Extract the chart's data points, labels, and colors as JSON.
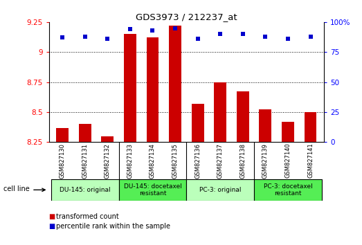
{
  "title": "GDS3973 / 212237_at",
  "samples": [
    "GSM827130",
    "GSM827131",
    "GSM827132",
    "GSM827133",
    "GSM827134",
    "GSM827135",
    "GSM827136",
    "GSM827137",
    "GSM827138",
    "GSM827139",
    "GSM827140",
    "GSM827141"
  ],
  "bar_values": [
    8.37,
    8.4,
    8.3,
    9.15,
    9.12,
    9.22,
    8.57,
    8.75,
    8.67,
    8.52,
    8.42,
    8.5
  ],
  "percentile_values": [
    87,
    88,
    86,
    94,
    93,
    95,
    86,
    90,
    90,
    88,
    86,
    88
  ],
  "ylim_left": [
    8.25,
    9.25
  ],
  "ylim_right": [
    0,
    100
  ],
  "yticks_left": [
    8.25,
    8.5,
    8.75,
    9.0,
    9.25
  ],
  "yticks_right": [
    0,
    25,
    50,
    75,
    100
  ],
  "ytick_labels_left": [
    "8.25",
    "8.5",
    "8.75",
    "9",
    "9.25"
  ],
  "ytick_labels_right": [
    "0",
    "25",
    "50",
    "75",
    "100%"
  ],
  "bar_color": "#cc0000",
  "dot_color": "#0000cc",
  "grid_lines": [
    9.0,
    8.75,
    8.5
  ],
  "cell_groups": [
    {
      "label": "DU-145: original",
      "start": 0,
      "end": 3,
      "color": "#bbffbb"
    },
    {
      "label": "DU-145: docetaxel\nresistant",
      "start": 3,
      "end": 6,
      "color": "#55ee55"
    },
    {
      "label": "PC-3: original",
      "start": 6,
      "end": 9,
      "color": "#bbffbb"
    },
    {
      "label": "PC-3: docetaxel\nresistant",
      "start": 9,
      "end": 12,
      "color": "#55ee55"
    }
  ],
  "cell_line_label": "cell line",
  "legend_bar_label": "transformed count",
  "legend_dot_label": "percentile rank within the sample",
  "bar_bottom": 8.25,
  "background_color": "#ffffff",
  "plot_bg_color": "#ffffff",
  "tick_area_color": "#dddddd",
  "bar_width": 0.55
}
